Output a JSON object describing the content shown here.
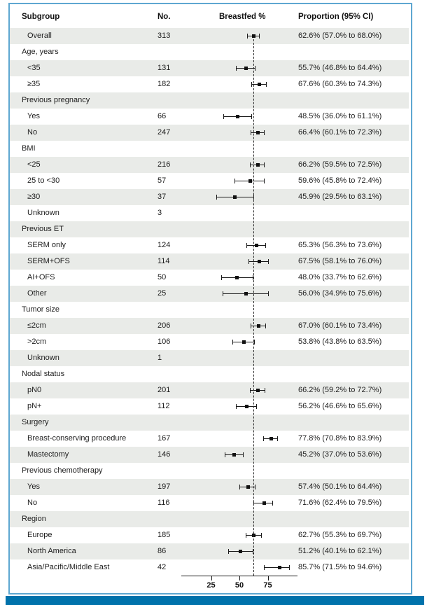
{
  "header": {
    "subgroup": "Subgroup",
    "no": "No.",
    "breastfed": "Breastfed %",
    "proportion": "Proportion (95% CI)"
  },
  "colors": {
    "frame_border": "#5ea7d1",
    "bottom_bar": "#0072ab",
    "row_shade": "#e9ebe8",
    "marker": "#111111"
  },
  "chart_data": {
    "type": "forest",
    "title": "",
    "xlabel": "Breastfed %",
    "xlim": [
      0,
      100
    ],
    "xticks": [
      25,
      50,
      75
    ],
    "reference_line": 62.6,
    "rows": [
      {
        "label": "Overall",
        "section": false,
        "shaded": true,
        "n": "313",
        "est": 62.6,
        "lo": 57.0,
        "hi": 68.0,
        "ci_text": "62.6% (57.0% to 68.0%)"
      },
      {
        "label": "Age, years",
        "section": true,
        "shaded": false
      },
      {
        "label": "<35",
        "section": false,
        "shaded": true,
        "n": "131",
        "est": 55.7,
        "lo": 46.8,
        "hi": 64.4,
        "ci_text": "55.7% (46.8% to 64.4%)"
      },
      {
        "label": "≥35",
        "section": false,
        "shaded": false,
        "n": "182",
        "est": 67.6,
        "lo": 60.3,
        "hi": 74.3,
        "ci_text": "67.6% (60.3% to 74.3%)"
      },
      {
        "label": "Previous pregnancy",
        "section": true,
        "shaded": true
      },
      {
        "label": "Yes",
        "section": false,
        "shaded": false,
        "n": "66",
        "est": 48.5,
        "lo": 36.0,
        "hi": 61.1,
        "ci_text": "48.5% (36.0% to 61.1%)"
      },
      {
        "label": "No",
        "section": false,
        "shaded": true,
        "n": "247",
        "est": 66.4,
        "lo": 60.1,
        "hi": 72.3,
        "ci_text": "66.4% (60.1% to 72.3%)"
      },
      {
        "label": "BMI",
        "section": true,
        "shaded": false
      },
      {
        "label": "<25",
        "section": false,
        "shaded": true,
        "n": "216",
        "est": 66.2,
        "lo": 59.5,
        "hi": 72.5,
        "ci_text": "66.2% (59.5% to 72.5%)"
      },
      {
        "label": "25 to <30",
        "section": false,
        "shaded": false,
        "n": "57",
        "est": 59.6,
        "lo": 45.8,
        "hi": 72.4,
        "ci_text": "59.6% (45.8% to 72.4%)"
      },
      {
        "label": "≥30",
        "section": false,
        "shaded": true,
        "n": "37",
        "est": 45.9,
        "lo": 29.5,
        "hi": 63.1,
        "ci_text": "45.9% (29.5% to 63.1%)"
      },
      {
        "label": "Unknown",
        "section": false,
        "shaded": false,
        "n": "3"
      },
      {
        "label": "Previous ET",
        "section": true,
        "shaded": true
      },
      {
        "label": "SERM only",
        "section": false,
        "shaded": false,
        "n": "124",
        "est": 65.3,
        "lo": 56.3,
        "hi": 73.6,
        "ci_text": "65.3% (56.3% to 73.6%)"
      },
      {
        "label": "SERM+OFS",
        "section": false,
        "shaded": true,
        "n": "114",
        "est": 67.5,
        "lo": 58.1,
        "hi": 76.0,
        "ci_text": "67.5% (58.1% to 76.0%)"
      },
      {
        "label": "AI+OFS",
        "section": false,
        "shaded": false,
        "n": "50",
        "est": 48.0,
        "lo": 33.7,
        "hi": 62.6,
        "ci_text": "48.0% (33.7% to 62.6%)"
      },
      {
        "label": "Other",
        "section": false,
        "shaded": true,
        "n": "25",
        "est": 56.0,
        "lo": 34.9,
        "hi": 75.6,
        "ci_text": "56.0% (34.9% to 75.6%)"
      },
      {
        "label": "Tumor size",
        "section": true,
        "shaded": false
      },
      {
        "label": "≤2cm",
        "section": false,
        "shaded": true,
        "n": "206",
        "est": 67.0,
        "lo": 60.1,
        "hi": 73.4,
        "ci_text": "67.0% (60.1% to 73.4%)"
      },
      {
        "label": ">2cm",
        "section": false,
        "shaded": false,
        "n": "106",
        "est": 53.8,
        "lo": 43.8,
        "hi": 63.5,
        "ci_text": "53.8% (43.8% to 63.5%)"
      },
      {
        "label": "Unknown",
        "section": false,
        "shaded": true,
        "n": "1"
      },
      {
        "label": "Nodal status",
        "section": true,
        "shaded": false
      },
      {
        "label": "pN0",
        "section": false,
        "shaded": true,
        "n": "201",
        "est": 66.2,
        "lo": 59.2,
        "hi": 72.7,
        "ci_text": "66.2% (59.2% to 72.7%)"
      },
      {
        "label": "pN+",
        "section": false,
        "shaded": false,
        "n": "112",
        "est": 56.2,
        "lo": 46.6,
        "hi": 65.6,
        "ci_text": "56.2% (46.6% to 65.6%)"
      },
      {
        "label": "Surgery",
        "section": true,
        "shaded": true
      },
      {
        "label": "Breast-conserving procedure",
        "section": false,
        "shaded": false,
        "n": "167",
        "est": 77.8,
        "lo": 70.8,
        "hi": 83.9,
        "ci_text": "77.8% (70.8% to 83.9%)"
      },
      {
        "label": "Mastectomy",
        "section": false,
        "shaded": true,
        "n": "146",
        "est": 45.2,
        "lo": 37.0,
        "hi": 53.6,
        "ci_text": "45.2% (37.0% to 53.6%)"
      },
      {
        "label": "Previous chemotherapy",
        "section": true,
        "shaded": false
      },
      {
        "label": "Yes",
        "section": false,
        "shaded": true,
        "n": "197",
        "est": 57.4,
        "lo": 50.1,
        "hi": 64.4,
        "ci_text": "57.4% (50.1% to 64.4%)"
      },
      {
        "label": "No",
        "section": false,
        "shaded": false,
        "n": "116",
        "est": 71.6,
        "lo": 62.4,
        "hi": 79.5,
        "ci_text": "71.6% (62.4% to 79.5%)"
      },
      {
        "label": "Region",
        "section": true,
        "shaded": true
      },
      {
        "label": "Europe",
        "section": false,
        "shaded": false,
        "n": "185",
        "est": 62.7,
        "lo": 55.3,
        "hi": 69.7,
        "ci_text": "62.7% (55.3% to 69.7%)"
      },
      {
        "label": "North America",
        "section": false,
        "shaded": true,
        "n": "86",
        "est": 51.2,
        "lo": 40.1,
        "hi": 62.1,
        "ci_text": "51.2% (40.1% to 62.1%)"
      },
      {
        "label": "Asia/Pacific/Middle East",
        "section": false,
        "shaded": false,
        "n": "42",
        "est": 85.7,
        "lo": 71.5,
        "hi": 94.6,
        "ci_text": "85.7% (71.5% to 94.6%)"
      }
    ]
  }
}
